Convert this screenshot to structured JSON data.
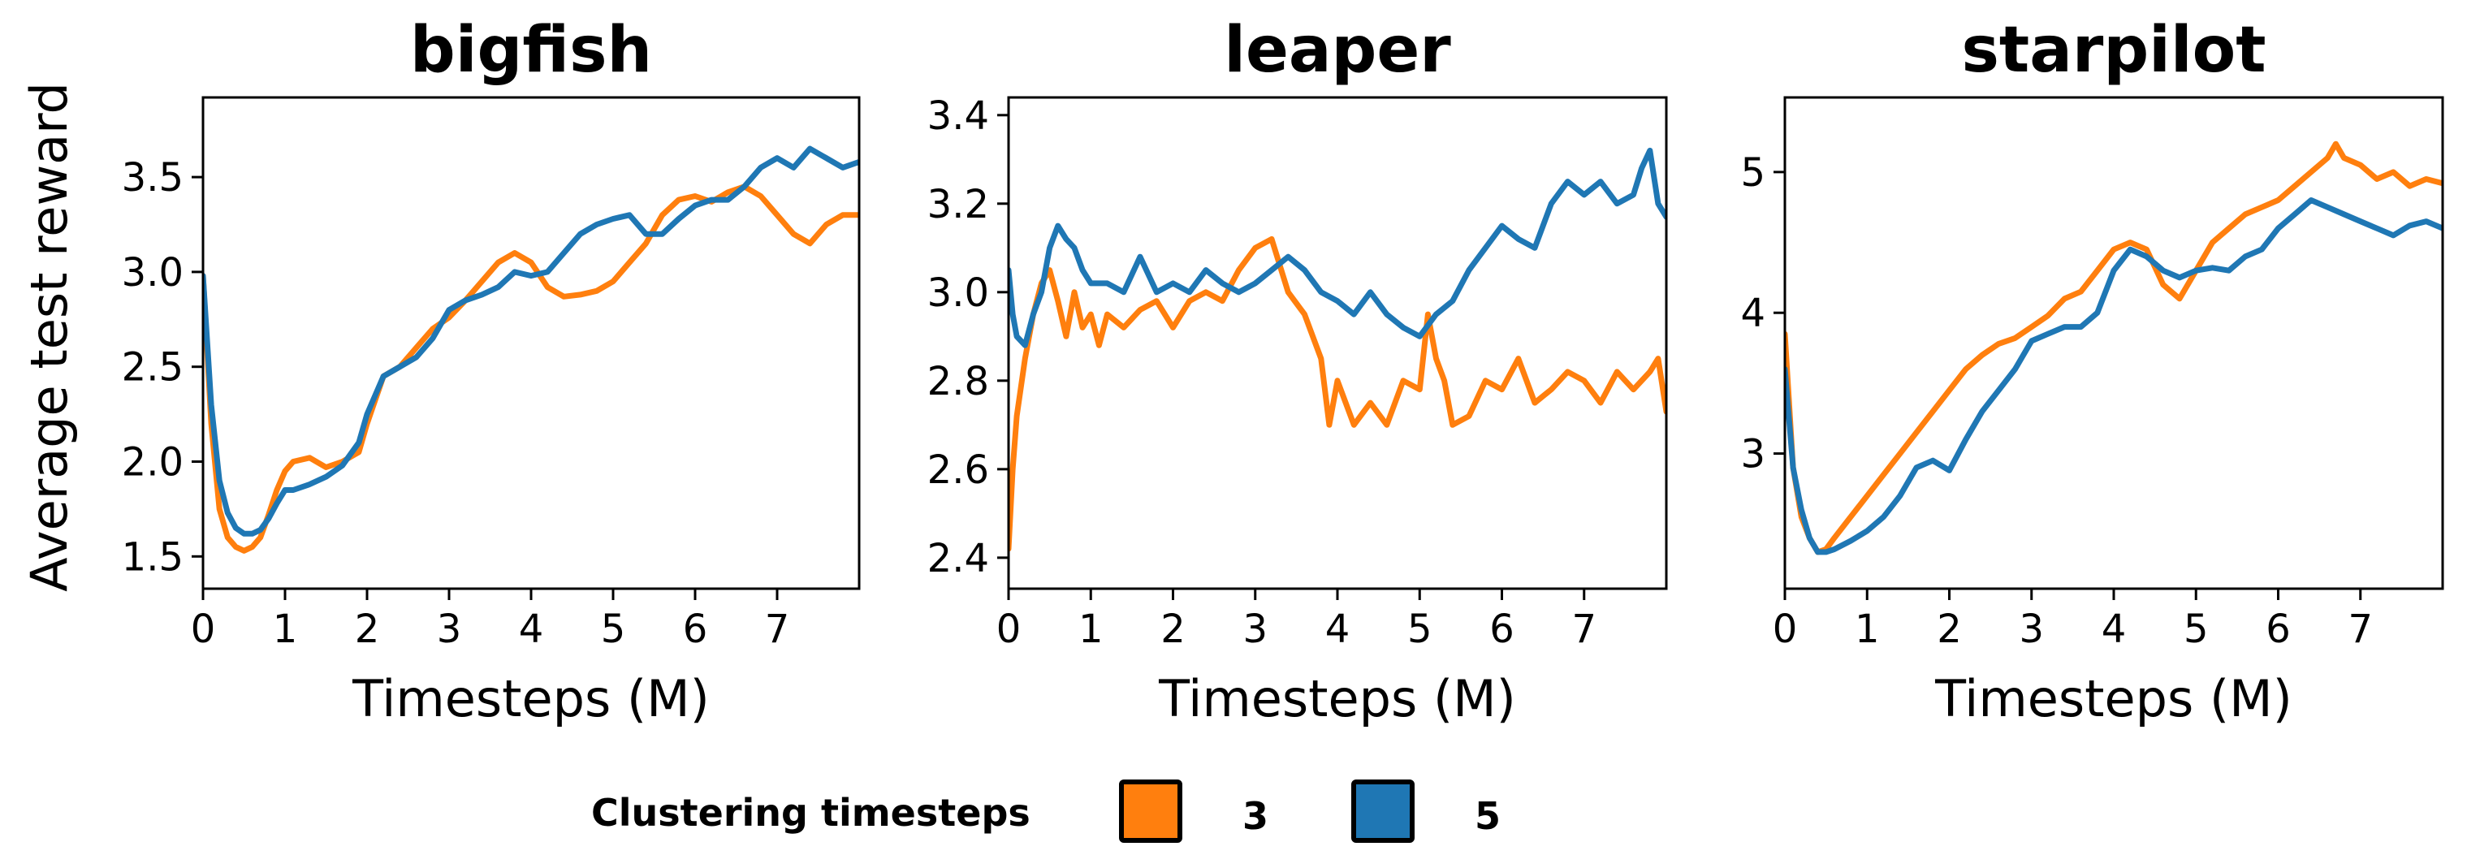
{
  "figure": {
    "ylabel": "Average test reward",
    "legend_title": "Clustering timesteps",
    "colors": {
      "series_3": "#ff7f0e",
      "series_5": "#1f77b4"
    }
  },
  "chart_data": [
    {
      "type": "line",
      "title": "bigfish",
      "xlabel": "Timesteps (M)",
      "ylabel": "Average test reward",
      "xlim": [
        0,
        8
      ],
      "ylim": [
        1.33,
        3.92
      ],
      "xticks": [
        0,
        1,
        2,
        3,
        4,
        5,
        6,
        7
      ],
      "yticks": [
        1.5,
        2.0,
        2.5,
        3.0,
        3.5
      ],
      "ytick_labels": [
        "1.5",
        "2.0",
        "2.5",
        "3.0",
        "3.5"
      ],
      "series": [
        {
          "name": "3",
          "color": "#ff7f0e",
          "x": [
            0,
            0.1,
            0.2,
            0.3,
            0.4,
            0.5,
            0.6,
            0.7,
            0.8,
            0.9,
            1.0,
            1.1,
            1.3,
            1.5,
            1.7,
            1.9,
            2.0,
            2.2,
            2.4,
            2.6,
            2.8,
            3.0,
            3.2,
            3.4,
            3.6,
            3.8,
            4.0,
            4.2,
            4.4,
            4.6,
            4.8,
            5.0,
            5.2,
            5.4,
            5.6,
            5.8,
            6.0,
            6.2,
            6.4,
            6.6,
            6.8,
            7.0,
            7.2,
            7.4,
            7.6,
            7.8,
            8.0
          ],
          "y": [
            2.98,
            2.2,
            1.75,
            1.6,
            1.55,
            1.53,
            1.55,
            1.6,
            1.72,
            1.85,
            1.95,
            2.0,
            2.02,
            1.97,
            2.0,
            2.05,
            2.2,
            2.45,
            2.5,
            2.6,
            2.7,
            2.76,
            2.85,
            2.95,
            3.05,
            3.1,
            3.05,
            2.92,
            2.87,
            2.88,
            2.9,
            2.95,
            3.05,
            3.15,
            3.3,
            3.38,
            3.4,
            3.37,
            3.42,
            3.45,
            3.4,
            3.3,
            3.2,
            3.15,
            3.25,
            3.3,
            3.3
          ]
        },
        {
          "name": "5",
          "color": "#1f77b4",
          "x": [
            0,
            0.1,
            0.2,
            0.3,
            0.4,
            0.5,
            0.6,
            0.7,
            0.8,
            0.9,
            1.0,
            1.1,
            1.3,
            1.5,
            1.7,
            1.9,
            2.0,
            2.2,
            2.4,
            2.6,
            2.8,
            3.0,
            3.2,
            3.4,
            3.6,
            3.8,
            4.0,
            4.2,
            4.4,
            4.6,
            4.8,
            5.0,
            5.2,
            5.4,
            5.6,
            5.8,
            6.0,
            6.2,
            6.4,
            6.6,
            6.8,
            7.0,
            7.2,
            7.4,
            7.6,
            7.8,
            8.0
          ],
          "y": [
            2.98,
            2.3,
            1.9,
            1.73,
            1.65,
            1.62,
            1.62,
            1.64,
            1.7,
            1.78,
            1.85,
            1.85,
            1.88,
            1.92,
            1.98,
            2.1,
            2.25,
            2.45,
            2.5,
            2.55,
            2.65,
            2.8,
            2.85,
            2.88,
            2.92,
            3.0,
            2.98,
            3.0,
            3.1,
            3.2,
            3.25,
            3.28,
            3.3,
            3.2,
            3.2,
            3.28,
            3.35,
            3.38,
            3.38,
            3.45,
            3.55,
            3.6,
            3.55,
            3.65,
            3.6,
            3.55,
            3.58
          ]
        }
      ]
    },
    {
      "type": "line",
      "title": "leaper",
      "xlabel": "Timesteps (M)",
      "xlim": [
        0,
        8
      ],
      "ylim": [
        2.33,
        3.44
      ],
      "xticks": [
        0,
        1,
        2,
        3,
        4,
        5,
        6,
        7
      ],
      "yticks": [
        2.4,
        2.6,
        2.8,
        3.0,
        3.2,
        3.4
      ],
      "ytick_labels": [
        "2.4",
        "2.6",
        "2.8",
        "3.0",
        "3.2",
        "3.4"
      ],
      "series": [
        {
          "name": "3",
          "color": "#ff7f0e",
          "x": [
            0,
            0.05,
            0.1,
            0.2,
            0.3,
            0.4,
            0.5,
            0.6,
            0.7,
            0.8,
            0.9,
            1.0,
            1.1,
            1.2,
            1.4,
            1.6,
            1.8,
            2.0,
            2.2,
            2.4,
            2.6,
            2.8,
            3.0,
            3.2,
            3.4,
            3.6,
            3.8,
            3.9,
            4.0,
            4.2,
            4.4,
            4.6,
            4.8,
            5.0,
            5.1,
            5.2,
            5.3,
            5.4,
            5.6,
            5.8,
            6.0,
            6.2,
            6.4,
            6.6,
            6.8,
            7.0,
            7.2,
            7.4,
            7.6,
            7.8,
            7.9,
            8.0
          ],
          "y": [
            2.42,
            2.6,
            2.72,
            2.85,
            2.95,
            3.02,
            3.05,
            2.98,
            2.9,
            3.0,
            2.92,
            2.95,
            2.88,
            2.95,
            2.92,
            2.96,
            2.98,
            2.92,
            2.98,
            3.0,
            2.98,
            3.05,
            3.1,
            3.12,
            3.0,
            2.95,
            2.85,
            2.7,
            2.8,
            2.7,
            2.75,
            2.7,
            2.8,
            2.78,
            2.95,
            2.85,
            2.8,
            2.7,
            2.72,
            2.8,
            2.78,
            2.85,
            2.75,
            2.78,
            2.82,
            2.8,
            2.75,
            2.82,
            2.78,
            2.82,
            2.85,
            2.73
          ]
        },
        {
          "name": "5",
          "color": "#1f77b4",
          "x": [
            0,
            0.05,
            0.1,
            0.2,
            0.3,
            0.4,
            0.5,
            0.6,
            0.7,
            0.8,
            0.9,
            1.0,
            1.2,
            1.4,
            1.6,
            1.8,
            2.0,
            2.2,
            2.4,
            2.6,
            2.8,
            3.0,
            3.2,
            3.4,
            3.6,
            3.8,
            4.0,
            4.2,
            4.4,
            4.6,
            4.8,
            5.0,
            5.2,
            5.4,
            5.6,
            5.8,
            6.0,
            6.2,
            6.4,
            6.6,
            6.8,
            7.0,
            7.2,
            7.4,
            7.6,
            7.7,
            7.8,
            7.9,
            8.0
          ],
          "y": [
            3.05,
            2.95,
            2.9,
            2.88,
            2.95,
            3.0,
            3.1,
            3.15,
            3.12,
            3.1,
            3.05,
            3.02,
            3.02,
            3.0,
            3.08,
            3.0,
            3.02,
            3.0,
            3.05,
            3.02,
            3.0,
            3.02,
            3.05,
            3.08,
            3.05,
            3.0,
            2.98,
            2.95,
            3.0,
            2.95,
            2.92,
            2.9,
            2.95,
            2.98,
            3.05,
            3.1,
            3.15,
            3.12,
            3.1,
            3.2,
            3.25,
            3.22,
            3.25,
            3.2,
            3.22,
            3.28,
            3.32,
            3.2,
            3.17
          ]
        }
      ]
    },
    {
      "type": "line",
      "title": "starpilot",
      "xlabel": "Timesteps (M)",
      "xlim": [
        0,
        8
      ],
      "ylim": [
        2.04,
        5.53
      ],
      "xticks": [
        0,
        1,
        2,
        3,
        4,
        5,
        6,
        7
      ],
      "yticks": [
        3,
        4,
        5
      ],
      "ytick_labels": [
        "3",
        "4",
        "5"
      ],
      "series": [
        {
          "name": "3",
          "color": "#ff7f0e",
          "x": [
            0,
            0.1,
            0.2,
            0.3,
            0.4,
            0.5,
            0.6,
            0.8,
            1.0,
            1.2,
            1.4,
            1.6,
            1.8,
            2.0,
            2.2,
            2.4,
            2.6,
            2.8,
            3.0,
            3.2,
            3.4,
            3.6,
            3.8,
            4.0,
            4.2,
            4.4,
            4.6,
            4.8,
            5.0,
            5.2,
            5.4,
            5.6,
            5.8,
            6.0,
            6.2,
            6.4,
            6.6,
            6.7,
            6.8,
            7.0,
            7.2,
            7.4,
            7.6,
            7.8,
            8.0
          ],
          "y": [
            3.85,
            2.9,
            2.55,
            2.4,
            2.3,
            2.32,
            2.4,
            2.55,
            2.7,
            2.85,
            3.0,
            3.15,
            3.3,
            3.45,
            3.6,
            3.7,
            3.78,
            3.82,
            3.9,
            3.98,
            4.1,
            4.15,
            4.3,
            4.45,
            4.5,
            4.45,
            4.2,
            4.1,
            4.3,
            4.5,
            4.6,
            4.7,
            4.75,
            4.8,
            4.9,
            5.0,
            5.1,
            5.2,
            5.1,
            5.05,
            4.95,
            5.0,
            4.9,
            4.95,
            4.92
          ]
        },
        {
          "name": "5",
          "color": "#1f77b4",
          "x": [
            0,
            0.1,
            0.2,
            0.3,
            0.4,
            0.5,
            0.6,
            0.8,
            1.0,
            1.2,
            1.4,
            1.6,
            1.8,
            2.0,
            2.2,
            2.4,
            2.6,
            2.8,
            3.0,
            3.2,
            3.4,
            3.6,
            3.8,
            4.0,
            4.2,
            4.4,
            4.6,
            4.8,
            5.0,
            5.2,
            5.4,
            5.6,
            5.8,
            6.0,
            6.2,
            6.4,
            6.6,
            6.8,
            7.0,
            7.2,
            7.4,
            7.6,
            7.8,
            8.0
          ],
          "y": [
            3.6,
            2.9,
            2.6,
            2.4,
            2.3,
            2.3,
            2.32,
            2.38,
            2.45,
            2.55,
            2.7,
            2.9,
            2.95,
            2.88,
            3.1,
            3.3,
            3.45,
            3.6,
            3.8,
            3.85,
            3.9,
            3.9,
            4.0,
            4.3,
            4.45,
            4.4,
            4.3,
            4.25,
            4.3,
            4.32,
            4.3,
            4.4,
            4.45,
            4.6,
            4.7,
            4.8,
            4.75,
            4.7,
            4.65,
            4.6,
            4.55,
            4.62,
            4.65,
            4.6
          ]
        }
      ]
    }
  ]
}
